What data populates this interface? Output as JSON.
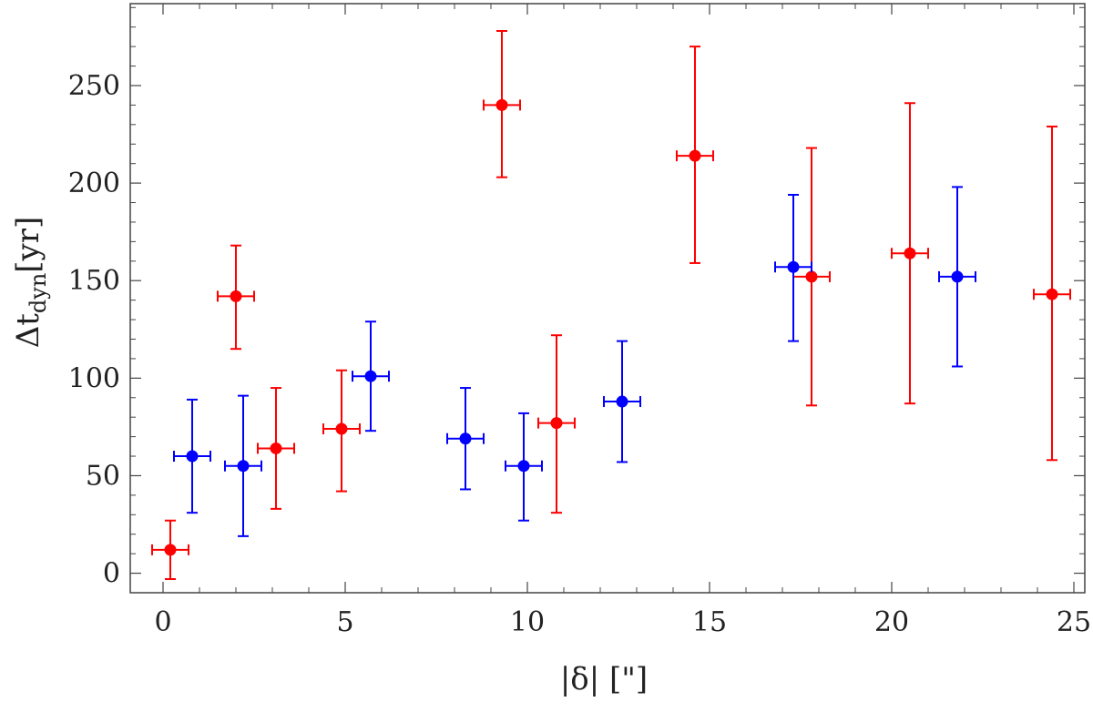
{
  "chart_data": {
    "type": "scatter",
    "title": "",
    "xlabel": "|δ|  [\"]",
    "ylabel_main": "Δt",
    "ylabel_sub": "dyn",
    "ylabel_unit": "[yr]",
    "xlim": [
      -0.9,
      25.3
    ],
    "ylim": [
      -10,
      292
    ],
    "xticks": [
      0,
      5,
      10,
      15,
      20,
      25
    ],
    "yticks": [
      0,
      50,
      100,
      150,
      200,
      250
    ],
    "grid": false,
    "series": [
      {
        "name": "red",
        "color": "#ff0000",
        "points": [
          {
            "x": 0.2,
            "y": 12,
            "xerr": 0.5,
            "ylo": -3,
            "yhi": 27
          },
          {
            "x": 2.0,
            "y": 142,
            "xerr": 0.5,
            "ylo": 115,
            "yhi": 168
          },
          {
            "x": 3.1,
            "y": 64,
            "xerr": 0.5,
            "ylo": 33,
            "yhi": 95
          },
          {
            "x": 4.9,
            "y": 74,
            "xerr": 0.5,
            "ylo": 42,
            "yhi": 104
          },
          {
            "x": 9.3,
            "y": 240,
            "xerr": 0.5,
            "ylo": 203,
            "yhi": 278
          },
          {
            "x": 10.8,
            "y": 77,
            "xerr": 0.5,
            "ylo": 31,
            "yhi": 122
          },
          {
            "x": 14.6,
            "y": 214,
            "xerr": 0.5,
            "ylo": 159,
            "yhi": 270
          },
          {
            "x": 17.8,
            "y": 152,
            "xerr": 0.5,
            "ylo": 86,
            "yhi": 218
          },
          {
            "x": 20.5,
            "y": 164,
            "xerr": 0.5,
            "ylo": 87,
            "yhi": 241
          },
          {
            "x": 24.4,
            "y": 143,
            "xerr": 0.5,
            "ylo": 58,
            "yhi": 229
          }
        ]
      },
      {
        "name": "blue",
        "color": "#0000ff",
        "points": [
          {
            "x": 0.8,
            "y": 60,
            "xerr": 0.5,
            "ylo": 31,
            "yhi": 89
          },
          {
            "x": 2.2,
            "y": 55,
            "xerr": 0.5,
            "ylo": 19,
            "yhi": 91
          },
          {
            "x": 5.7,
            "y": 101,
            "xerr": 0.5,
            "ylo": 73,
            "yhi": 129
          },
          {
            "x": 8.3,
            "y": 69,
            "xerr": 0.5,
            "ylo": 43,
            "yhi": 95
          },
          {
            "x": 9.9,
            "y": 55,
            "xerr": 0.5,
            "ylo": 27,
            "yhi": 82
          },
          {
            "x": 12.6,
            "y": 88,
            "xerr": 0.5,
            "ylo": 57,
            "yhi": 119
          },
          {
            "x": 17.3,
            "y": 157,
            "xerr": 0.5,
            "ylo": 119,
            "yhi": 194
          },
          {
            "x": 21.8,
            "y": 152,
            "xerr": 0.5,
            "ylo": 106,
            "yhi": 198
          }
        ]
      }
    ]
  }
}
